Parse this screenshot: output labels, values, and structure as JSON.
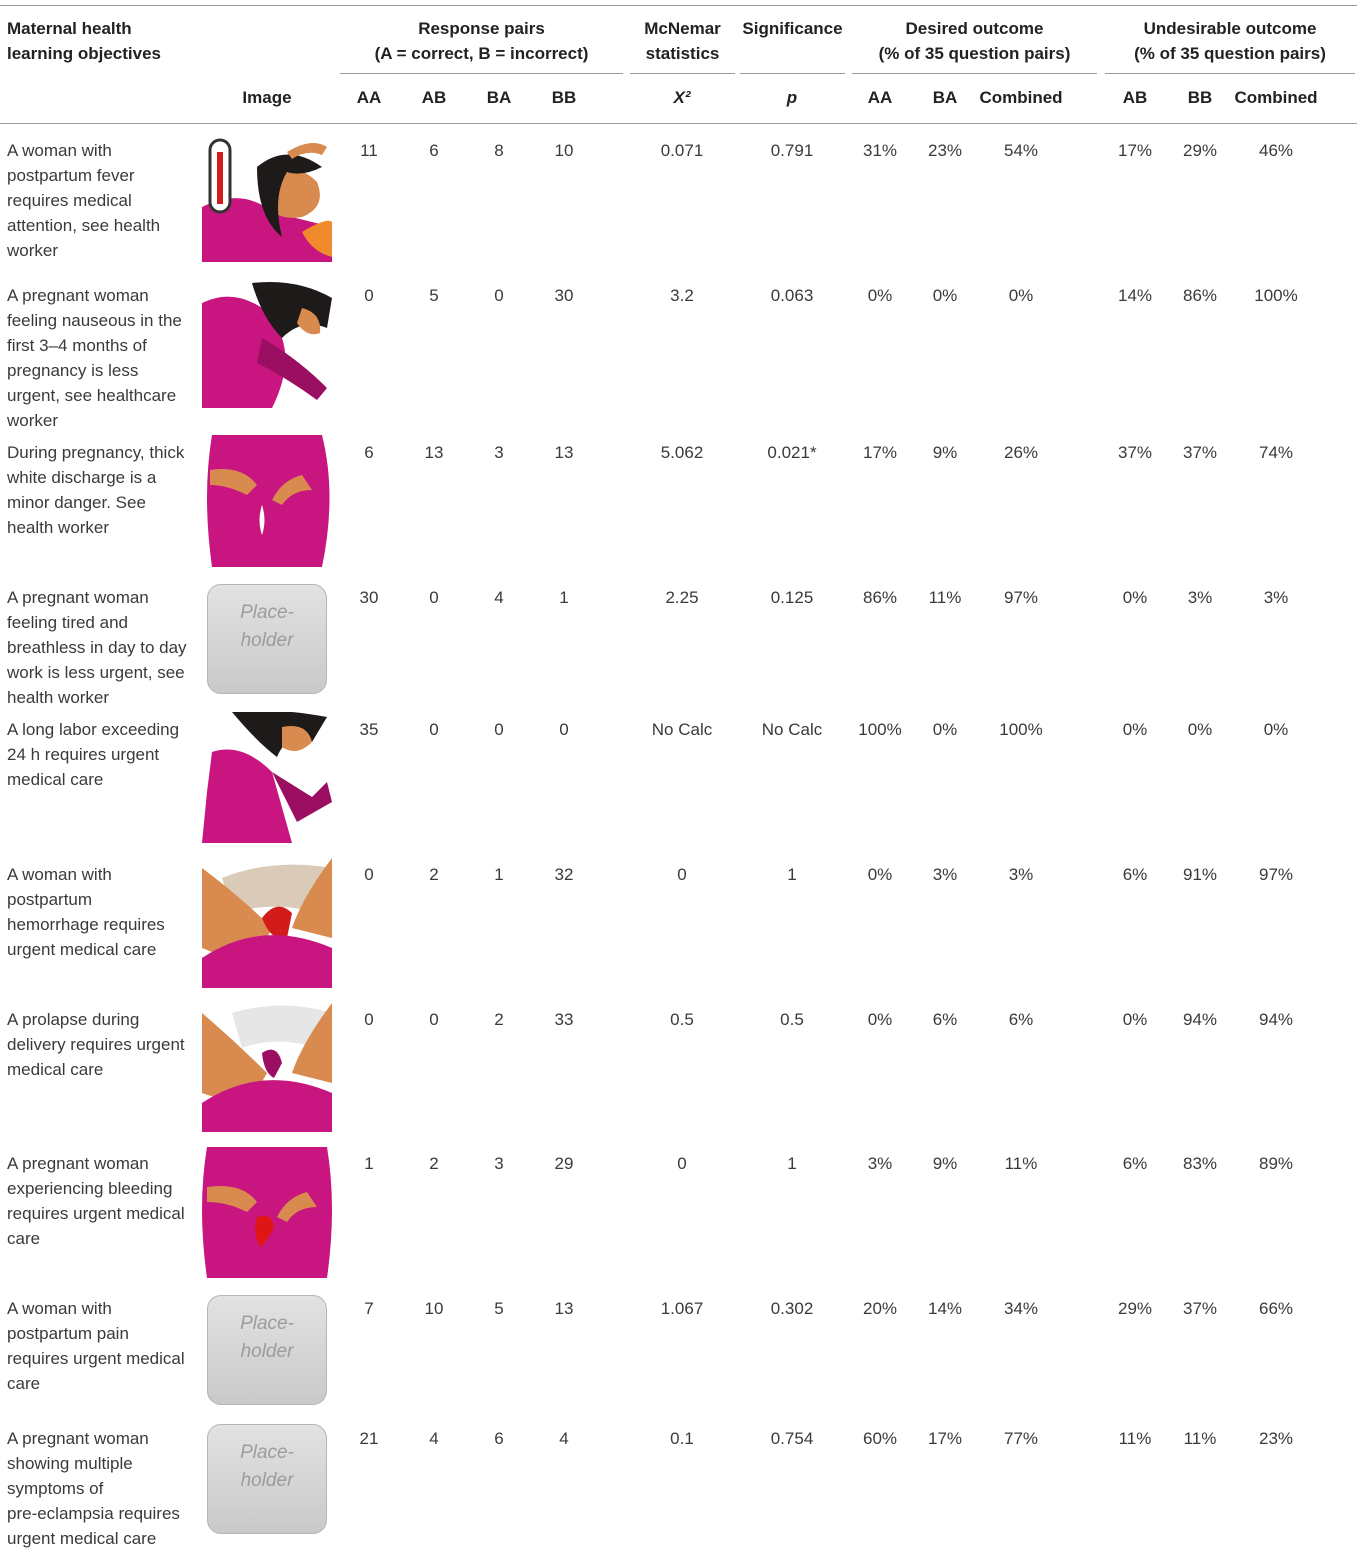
{
  "table": {
    "header": {
      "objectives": [
        "Maternal health",
        "learning objectives"
      ],
      "groups": [
        [
          "Response pairs",
          "(A = correct, B = incorrect)"
        ],
        [
          "McNemar",
          "statistics"
        ],
        [
          "Significance"
        ],
        [
          "Desired outcome",
          "(% of 35 question pairs)"
        ],
        [
          "Undesirable outcome",
          "(% of 35 question pairs)"
        ]
      ],
      "columns": [
        "Image",
        "AA",
        "AB",
        "BA",
        "BB",
        "X²",
        "p",
        "AA",
        "BA",
        "Combined",
        "AB",
        "BB",
        "Combined"
      ]
    },
    "rows": [
      {
        "objective": [
          "A woman with",
          "postpartum fever",
          "requires medical",
          "attention, see health",
          "worker"
        ],
        "values": [
          11,
          6,
          8,
          10,
          0.071,
          0.791,
          "31%",
          "23%",
          "54%",
          "17%",
          "29%",
          "46%"
        ]
      },
      {
        "objective": [
          "A pregnant woman",
          "feeling nauseous in the",
          "first 3–4 months of",
          "pregnancy is less",
          "urgent, see healthcare",
          "worker"
        ],
        "values": [
          0,
          5,
          0,
          30,
          3.2,
          0.063,
          "0%",
          "0%",
          "0%",
          "14%",
          "86%",
          "100%"
        ]
      },
      {
        "objective": [
          "During pregnancy, thick",
          "white discharge is a",
          "minor danger. See",
          "health worker"
        ],
        "values": [
          6,
          13,
          3,
          13,
          5.062,
          "0.021*",
          "17%",
          "9%",
          "26%",
          "37%",
          "37%",
          "74%"
        ]
      },
      {
        "objective": [
          "A pregnant woman",
          "feeling tired and",
          "breathless in day to day",
          "work is less urgent, see",
          "health worker"
        ],
        "placeholder": [
          "Place-",
          "holder"
        ],
        "values": [
          30,
          0,
          4,
          1,
          2.25,
          0.125,
          "86%",
          "11%",
          "97%",
          "0%",
          "3%",
          "3%"
        ]
      },
      {
        "objective": [
          "A long labor exceeding",
          "24 h requires urgent",
          "medical care"
        ],
        "values": [
          35,
          0,
          0,
          0,
          "No Calc",
          "No Calc",
          "100%",
          "0%",
          "100%",
          "0%",
          "0%",
          "0%"
        ]
      },
      {
        "objective": [
          "A woman with",
          "postpartum",
          "hemorrhage requires",
          "urgent medical care"
        ],
        "values": [
          0,
          2,
          1,
          32,
          0,
          1,
          "0%",
          "3%",
          "3%",
          "6%",
          "91%",
          "97%"
        ]
      },
      {
        "objective": [
          "A prolapse during",
          "delivery requires urgent",
          "medical care"
        ],
        "values": [
          0,
          0,
          2,
          33,
          0.5,
          0.5,
          "0%",
          "6%",
          "6%",
          "0%",
          "94%",
          "94%"
        ]
      },
      {
        "objective": [
          "A pregnant woman",
          "experiencing bleeding",
          "requires urgent medical",
          "care"
        ],
        "values": [
          1,
          2,
          3,
          29,
          0,
          1,
          "3%",
          "9%",
          "11%",
          "6%",
          "83%",
          "89%"
        ]
      },
      {
        "objective": [
          "A woman with",
          "postpartum pain",
          "requires urgent medical",
          "care"
        ],
        "placeholder": [
          "Place-",
          "holder"
        ],
        "values": [
          7,
          10,
          5,
          13,
          1.067,
          0.302,
          "20%",
          "14%",
          "34%",
          "29%",
          "37%",
          "66%"
        ]
      },
      {
        "objective": [
          "A pregnant woman",
          "showing multiple",
          "symptoms of",
          "pre-eclampsia requires",
          "urgent medical care"
        ],
        "placeholder": [
          "Place-",
          "holder"
        ],
        "values": [
          21,
          4,
          6,
          4,
          0.1,
          0.754,
          "60%",
          "17%",
          "77%",
          "11%",
          "11%",
          "23%"
        ]
      }
    ]
  }
}
